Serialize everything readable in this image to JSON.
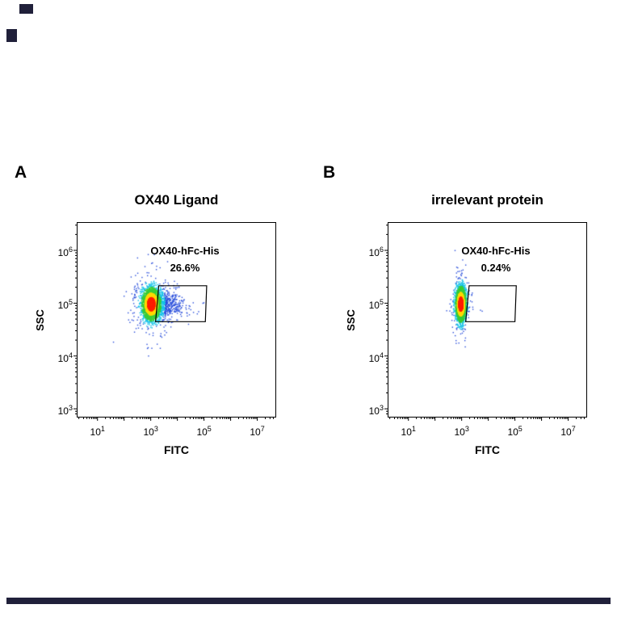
{
  "figure": {
    "background": "#ffffff",
    "artifact_color": "#20203a",
    "density_palette": {
      "core": "#ff2000",
      "inner": "#ffd900",
      "mid": "#38cc38",
      "outer": "#16c2e8",
      "sparse": "#2a4fdb"
    },
    "density_thresholds": [
      0.9,
      1.5,
      2.3,
      3.2
    ]
  },
  "chart_data": [
    {
      "type": "scatter",
      "panel": "A",
      "title": "OX40 Ligand",
      "xlabel": "FITC",
      "ylabel": "SSC",
      "x_scale": "log",
      "y_scale": "log",
      "x_ticks": [
        1,
        3,
        5,
        7
      ],
      "y_ticks": [
        3,
        4,
        5,
        6
      ],
      "x_range_log10": [
        0.25,
        7.68
      ],
      "y_range_log10": [
        2.85,
        6.52
      ],
      "gate": {
        "label": "OX40-hFc-His",
        "percent": "26.6%",
        "percent_value": 26.6,
        "polygon_log10": [
          [
            3.3,
            5.33
          ],
          [
            5.1,
            5.33
          ],
          [
            5.05,
            4.65
          ],
          [
            3.18,
            4.65
          ]
        ]
      },
      "populations": [
        {
          "name": "core",
          "n": 3200,
          "cx": 3.02,
          "cy": 4.98,
          "sx": 0.16,
          "sy": 0.14
        },
        {
          "name": "tail",
          "n": 650,
          "x0": 3.1,
          "decay": 0.55,
          "xmax": 5.05,
          "cy": 4.98,
          "sy": 0.13
        },
        {
          "name": "halo",
          "n": 300,
          "cx": 3.0,
          "cy": 4.98,
          "sx": 0.45,
          "sy": 0.33
        }
      ],
      "seed": 42
    },
    {
      "type": "scatter",
      "panel": "B",
      "title": "irrelevant protein",
      "xlabel": "FITC",
      "ylabel": "SSC",
      "x_scale": "log",
      "y_scale": "log",
      "x_ticks": [
        1,
        3,
        5,
        7
      ],
      "y_ticks": [
        3,
        4,
        5,
        6
      ],
      "x_range_log10": [
        0.25,
        7.68
      ],
      "y_range_log10": [
        2.85,
        6.52
      ],
      "gate": {
        "label": "OX40-hFc-His",
        "percent": "0.24%",
        "percent_value": 0.24,
        "polygon_log10": [
          [
            3.28,
            5.33
          ],
          [
            5.05,
            5.33
          ],
          [
            5.0,
            4.65
          ],
          [
            3.15,
            4.65
          ]
        ]
      },
      "populations": [
        {
          "name": "core",
          "n": 3200,
          "cx": 2.97,
          "cy": 4.98,
          "sx": 0.09,
          "sy": 0.15
        },
        {
          "name": "tail",
          "n": 25,
          "x0": 3.05,
          "decay": 0.25,
          "xmax": 3.9,
          "cy": 4.98,
          "sy": 0.13
        },
        {
          "name": "halo",
          "n": 180,
          "cx": 2.97,
          "cy": 4.98,
          "sx": 0.18,
          "sy": 0.33
        }
      ],
      "seed": 7
    }
  ]
}
